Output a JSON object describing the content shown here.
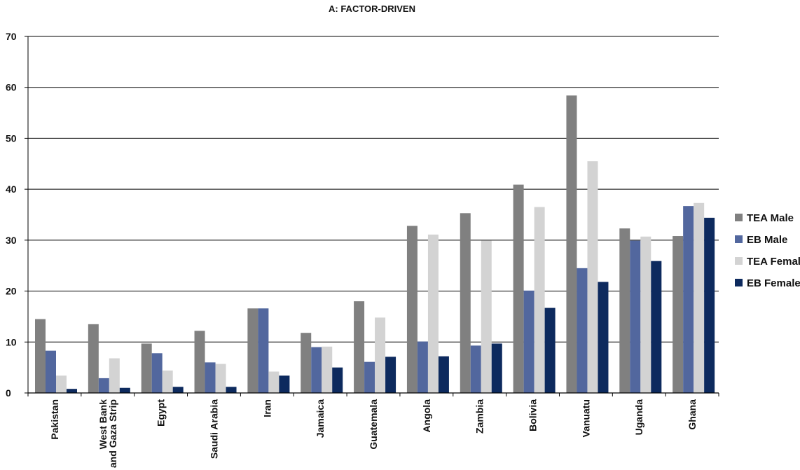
{
  "chart_data": {
    "type": "bar",
    "title": "A: FACTOR-DRIVEN",
    "xlabel": "",
    "ylabel": "",
    "ylim": [
      0,
      70
    ],
    "yticks": [
      0,
      10,
      20,
      30,
      40,
      50,
      60,
      70
    ],
    "grid": true,
    "legend_position": "right",
    "categories": [
      "Pakistan",
      "West Bank\nand Gaza Strip",
      "Egypt",
      "Saudi Arabia",
      "Iran",
      "Jamaica",
      "Guatemala",
      "Angola",
      "Zambia",
      "Bolivia",
      "Vanuatu",
      "Uganda",
      "Ghana"
    ],
    "series": [
      {
        "name": "TEA Male",
        "color": "#808080",
        "values": [
          14.5,
          13.5,
          9.7,
          12.2,
          16.6,
          11.8,
          18.0,
          32.8,
          35.3,
          40.9,
          58.4,
          32.3,
          30.8
        ]
      },
      {
        "name": "EB Male",
        "color": "#52679e",
        "values": [
          8.3,
          2.9,
          7.8,
          6.0,
          16.6,
          9.0,
          6.1,
          10.1,
          9.3,
          20.1,
          24.5,
          29.9,
          36.7
        ]
      },
      {
        "name": "TEA Female",
        "color": "#d3d3d3",
        "values": [
          3.4,
          6.8,
          4.4,
          5.7,
          4.2,
          9.1,
          14.8,
          31.1,
          29.9,
          36.5,
          45.5,
          30.7,
          37.3
        ]
      },
      {
        "name": "EB Female",
        "color": "#0d2a5e",
        "values": [
          0.8,
          1.0,
          1.2,
          1.2,
          3.4,
          5.0,
          7.1,
          7.2,
          9.7,
          16.7,
          21.8,
          25.9,
          34.4
        ]
      }
    ]
  }
}
